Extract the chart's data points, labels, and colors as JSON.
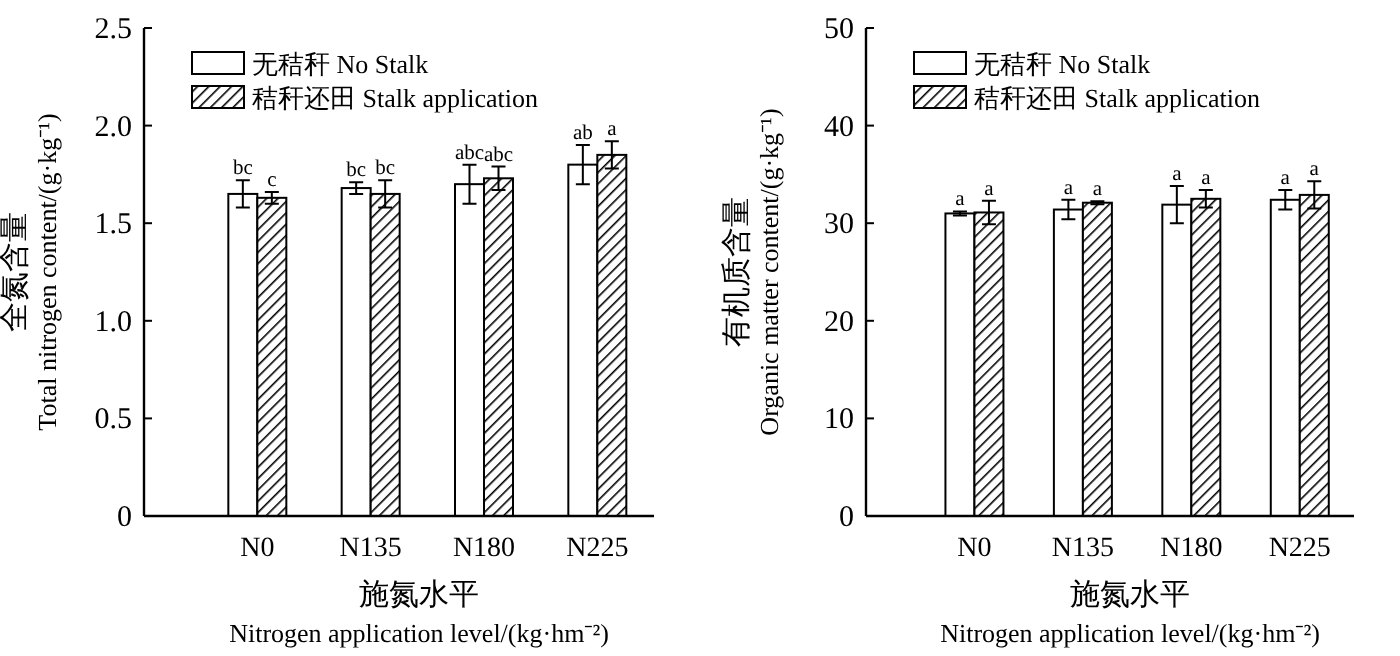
{
  "chart_data": [
    {
      "type": "bar",
      "categories": [
        "N0",
        "N135",
        "N180",
        "N225"
      ],
      "xlabel": "施氮水平\nNitrogen application level/(kg·hm⁻²)",
      "ylabel": "全氮含量\nTotal nitrogen content/(g·kg⁻¹)",
      "ylim": [
        0,
        2.5
      ],
      "yticks": [
        0,
        0.5,
        {
          "value": 1,
          "label": "1.0"
        },
        1.5,
        {
          "value": 2,
          "label": "2.0"
        },
        2.5
      ],
      "legend": "top left",
      "grid": false,
      "series": [
        {
          "name": "无秸秆 No Stalk",
          "color": "#ffffff",
          "values": [
            1.65,
            1.68,
            1.7,
            1.8
          ],
          "errors": [
            0.07,
            0.03,
            0.1,
            0.1
          ],
          "value_labels": [
            "bc",
            "bc",
            "abc",
            "ab"
          ]
        },
        {
          "name": "秸秆还田 Stalk application",
          "color": "#000000",
          "values": [
            1.63,
            1.65,
            1.73,
            1.85
          ],
          "errors": [
            0.03,
            0.07,
            0.06,
            0.07
          ],
          "value_labels": [
            "c",
            "bc",
            "abc",
            "a"
          ]
        }
      ]
    },
    {
      "type": "bar",
      "categories": [
        "N0",
        "N135",
        "N180",
        "N225"
      ],
      "xlabel": "施氮水平\nNitrogen application level/(kg·hm⁻²)",
      "ylabel": "有机质含量\nOrganic matter content/(g·kg⁻¹)",
      "ylim": [
        0,
        50
      ],
      "yticks": [
        0,
        10,
        20,
        30,
        40,
        50
      ],
      "legend": "top left",
      "grid": false,
      "series": [
        {
          "name": "无秸秆 No Stalk",
          "color": "#ffffff",
          "values": [
            31.0,
            31.4,
            31.9,
            32.4
          ],
          "errors": [
            0.2,
            1.0,
            1.9,
            1.0
          ],
          "value_labels": [
            "a",
            "a",
            "a",
            "a"
          ]
        },
        {
          "name": "秸秆还田 Stalk application",
          "color": "#000000",
          "values": [
            31.1,
            32.1,
            32.5,
            32.9
          ],
          "errors": [
            1.2,
            0.15,
            0.9,
            1.4
          ],
          "value_labels": [
            "a",
            "a",
            "a",
            "a"
          ]
        }
      ]
    }
  ]
}
